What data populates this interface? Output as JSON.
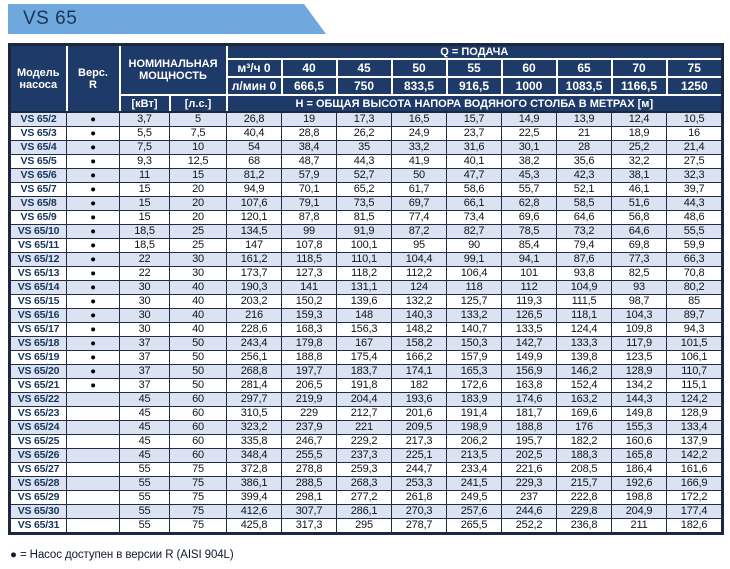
{
  "tab": {
    "title": "VS 65"
  },
  "colors": {
    "tab_blue": "#6fa8dc",
    "header_navy": "#1e3a68",
    "row_shade": "#dbe2f1",
    "grid_border": "#1b2840",
    "model_text": "#17365d"
  },
  "table": {
    "header": {
      "model": "Модель\nнасоса",
      "version": "Верс.\nR",
      "nominal_power": "НОМИНАЛЬНАЯ\nМОЩНОСТЬ",
      "q_title": "Q = ПОДАЧА",
      "kw_unit": "[кВт]",
      "hp_unit": "[л.с.]",
      "h_title": "Н = ОБЩАЯ ВЫСОТА НАПОРА ВОДЯНОГО СТОЛБА В МЕТРАХ [м]",
      "flow_m3h": [
        "м³/ч 0",
        "40",
        "45",
        "50",
        "55",
        "60",
        "65",
        "70",
        "75"
      ],
      "flow_lmin": [
        "л/мин 0",
        "666,5",
        "750",
        "833,5",
        "916,5",
        "1000",
        "1083,5",
        "1166,5",
        "1250"
      ]
    },
    "bullet": "●",
    "rows": [
      {
        "model": "VS 65/2",
        "version_r": true,
        "kw": "3,7",
        "hp": "5",
        "h_values": [
          "26,8",
          "19",
          "17,3",
          "16,5",
          "15,7",
          "14,9",
          "13,9",
          "12,4",
          "10,5"
        ]
      },
      {
        "model": "VS 65/3",
        "version_r": true,
        "kw": "5,5",
        "hp": "7,5",
        "h_values": [
          "40,4",
          "28,8",
          "26,2",
          "24,9",
          "23,7",
          "22,5",
          "21",
          "18,9",
          "16"
        ]
      },
      {
        "model": "VS 65/4",
        "version_r": true,
        "kw": "7,5",
        "hp": "10",
        "h_values": [
          "54",
          "38,4",
          "35",
          "33,2",
          "31,6",
          "30,1",
          "28",
          "25,2",
          "21,4"
        ]
      },
      {
        "model": "VS 65/5",
        "version_r": true,
        "kw": "9,3",
        "hp": "12,5",
        "h_values": [
          "68",
          "48,7",
          "44,3",
          "41,9",
          "40,1",
          "38,2",
          "35,6",
          "32,2",
          "27,5"
        ]
      },
      {
        "model": "VS 65/6",
        "version_r": true,
        "kw": "11",
        "hp": "15",
        "h_values": [
          "81,2",
          "57,9",
          "52,7",
          "50",
          "47,7",
          "45,3",
          "42,3",
          "38,1",
          "32,3"
        ]
      },
      {
        "model": "VS 65/7",
        "version_r": true,
        "kw": "15",
        "hp": "20",
        "h_values": [
          "94,9",
          "70,1",
          "65,2",
          "61,7",
          "58,6",
          "55,7",
          "52,1",
          "46,1",
          "39,7"
        ]
      },
      {
        "model": "VS 65/8",
        "version_r": true,
        "kw": "15",
        "hp": "20",
        "h_values": [
          "107,6",
          "79,1",
          "73,5",
          "69,7",
          "66,1",
          "62,8",
          "58,5",
          "51,6",
          "44,3"
        ]
      },
      {
        "model": "VS 65/9",
        "version_r": true,
        "kw": "15",
        "hp": "20",
        "h_values": [
          "120,1",
          "87,8",
          "81,5",
          "77,4",
          "73,4",
          "69,6",
          "64,6",
          "56,8",
          "48,6"
        ]
      },
      {
        "model": "VS 65/10",
        "version_r": true,
        "kw": "18,5",
        "hp": "25",
        "h_values": [
          "134,5",
          "99",
          "91,9",
          "87,2",
          "82,7",
          "78,5",
          "73,2",
          "64,6",
          "55,5"
        ]
      },
      {
        "model": "VS 65/11",
        "version_r": true,
        "kw": "18,5",
        "hp": "25",
        "h_values": [
          "147",
          "107,8",
          "100,1",
          "95",
          "90",
          "85,4",
          "79,4",
          "69,8",
          "59,9"
        ]
      },
      {
        "model": "VS 65/12",
        "version_r": true,
        "kw": "22",
        "hp": "30",
        "h_values": [
          "161,2",
          "118,5",
          "110,1",
          "104,4",
          "99,1",
          "94,1",
          "87,6",
          "77,3",
          "66,3"
        ]
      },
      {
        "model": "VS 65/13",
        "version_r": true,
        "kw": "22",
        "hp": "30",
        "h_values": [
          "173,7",
          "127,3",
          "118,2",
          "112,2",
          "106,4",
          "101",
          "93,8",
          "82,5",
          "70,8"
        ]
      },
      {
        "model": "VS 65/14",
        "version_r": true,
        "kw": "30",
        "hp": "40",
        "h_values": [
          "190,3",
          "141",
          "131,1",
          "124",
          "118",
          "112",
          "104,9",
          "93",
          "80,2"
        ]
      },
      {
        "model": "VS 65/15",
        "version_r": true,
        "kw": "30",
        "hp": "40",
        "h_values": [
          "203,2",
          "150,2",
          "139,6",
          "132,2",
          "125,7",
          "119,3",
          "111,5",
          "98,7",
          "85"
        ]
      },
      {
        "model": "VS 65/16",
        "version_r": true,
        "kw": "30",
        "hp": "40",
        "h_values": [
          "216",
          "159,3",
          "148",
          "140,3",
          "133,2",
          "126,5",
          "118,1",
          "104,3",
          "89,7"
        ]
      },
      {
        "model": "VS 65/17",
        "version_r": true,
        "kw": "30",
        "hp": "40",
        "h_values": [
          "228,6",
          "168,3",
          "156,3",
          "148,2",
          "140,7",
          "133,5",
          "124,4",
          "109,8",
          "94,3"
        ]
      },
      {
        "model": "VS 65/18",
        "version_r": true,
        "kw": "37",
        "hp": "50",
        "h_values": [
          "243,4",
          "179,8",
          "167",
          "158,2",
          "150,3",
          "142,7",
          "133,3",
          "117,9",
          "101,5"
        ]
      },
      {
        "model": "VS 65/19",
        "version_r": true,
        "kw": "37",
        "hp": "50",
        "h_values": [
          "256,1",
          "188,8",
          "175,4",
          "166,2",
          "157,9",
          "149,9",
          "139,8",
          "123,5",
          "106,1"
        ]
      },
      {
        "model": "VS 65/20",
        "version_r": true,
        "kw": "37",
        "hp": "50",
        "h_values": [
          "268,8",
          "197,7",
          "183,7",
          "174,1",
          "165,3",
          "156,9",
          "146,2",
          "128,9",
          "110,7"
        ]
      },
      {
        "model": "VS 65/21",
        "version_r": true,
        "kw": "37",
        "hp": "50",
        "h_values": [
          "281,4",
          "206,5",
          "191,8",
          "182",
          "172,6",
          "163,8",
          "152,4",
          "134,2",
          "115,1"
        ]
      },
      {
        "model": "VS 65/22",
        "version_r": false,
        "kw": "45",
        "hp": "60",
        "h_values": [
          "297,7",
          "219,9",
          "204,4",
          "193,6",
          "183,9",
          "174,6",
          "163,2",
          "144,3",
          "124,2"
        ]
      },
      {
        "model": "VS 65/23",
        "version_r": false,
        "kw": "45",
        "hp": "60",
        "h_values": [
          "310,5",
          "229",
          "212,7",
          "201,6",
          "191,4",
          "181,7",
          "169,6",
          "149,8",
          "128,9"
        ]
      },
      {
        "model": "VS 65/24",
        "version_r": false,
        "kw": "45",
        "hp": "60",
        "h_values": [
          "323,2",
          "237,9",
          "221",
          "209,5",
          "198,9",
          "188,8",
          "176",
          "155,3",
          "133,4"
        ]
      },
      {
        "model": "VS 65/25",
        "version_r": false,
        "kw": "45",
        "hp": "60",
        "h_values": [
          "335,8",
          "246,7",
          "229,2",
          "217,3",
          "206,2",
          "195,7",
          "182,2",
          "160,6",
          "137,9"
        ]
      },
      {
        "model": "VS 65/26",
        "version_r": false,
        "kw": "45",
        "hp": "60",
        "h_values": [
          "348,4",
          "255,5",
          "237,3",
          "225,1",
          "213,5",
          "202,5",
          "188,3",
          "165,8",
          "142,2"
        ]
      },
      {
        "model": "VS 65/27",
        "version_r": false,
        "kw": "55",
        "hp": "75",
        "h_values": [
          "372,8",
          "278,8",
          "259,3",
          "244,7",
          "233,4",
          "221,6",
          "208,5",
          "186,4",
          "161,6"
        ]
      },
      {
        "model": "VS 65/28",
        "version_r": false,
        "kw": "55",
        "hp": "75",
        "h_values": [
          "386,1",
          "288,5",
          "268,3",
          "253,3",
          "241,5",
          "229,3",
          "215,7",
          "192,6",
          "166,9"
        ]
      },
      {
        "model": "VS 65/29",
        "version_r": false,
        "kw": "55",
        "hp": "75",
        "h_values": [
          "399,4",
          "298,1",
          "277,2",
          "261,8",
          "249,5",
          "237",
          "222,8",
          "198,8",
          "172,2"
        ]
      },
      {
        "model": "VS 65/30",
        "version_r": false,
        "kw": "55",
        "hp": "75",
        "h_values": [
          "412,6",
          "307,7",
          "286,1",
          "270,3",
          "257,6",
          "244,6",
          "229,8",
          "204,9",
          "177,4"
        ]
      },
      {
        "model": "VS 65/31",
        "version_r": false,
        "kw": "55",
        "hp": "75",
        "h_values": [
          "425,8",
          "317,3",
          "295",
          "278,7",
          "265,5",
          "252,2",
          "236,8",
          "211",
          "182,6"
        ]
      }
    ]
  },
  "footer": {
    "note": "● = Насос доступен в версии R (AISI 904L)"
  }
}
